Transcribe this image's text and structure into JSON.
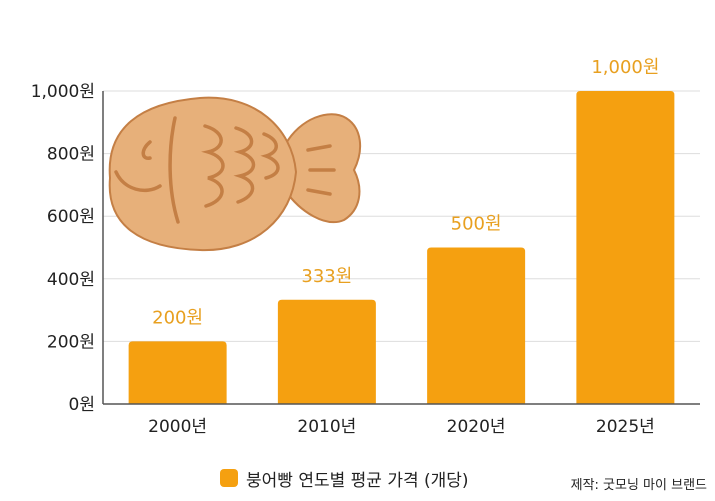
{
  "chart_data": {
    "type": "bar",
    "categories": [
      "2000년",
      "2010년",
      "2020년",
      "2025년"
    ],
    "values": [
      200,
      333,
      500,
      1000
    ],
    "value_labels": [
      "200원",
      "333원",
      "500원",
      "1,000원"
    ],
    "ylim": [
      0,
      1000
    ],
    "yticks": [
      0,
      200,
      400,
      600,
      800,
      1000
    ],
    "ytick_labels": [
      "0원",
      "200원",
      "400원",
      "600원",
      "800원",
      "1,000원"
    ],
    "grid": true,
    "legend": {
      "label": "붕어빵 연도별 평균 가격 (개당)",
      "position": "bottom-center"
    },
    "colors": {
      "bar": "#F5A010",
      "value_label": "#E8A020",
      "grid": "#dddddd",
      "axis": "#555555"
    }
  },
  "credit": "제작: 굿모닝 마이 브랜드",
  "illustration": {
    "icon": "fish-bread-icon",
    "fill": "#E7B07A",
    "stroke": "#C47F45"
  }
}
